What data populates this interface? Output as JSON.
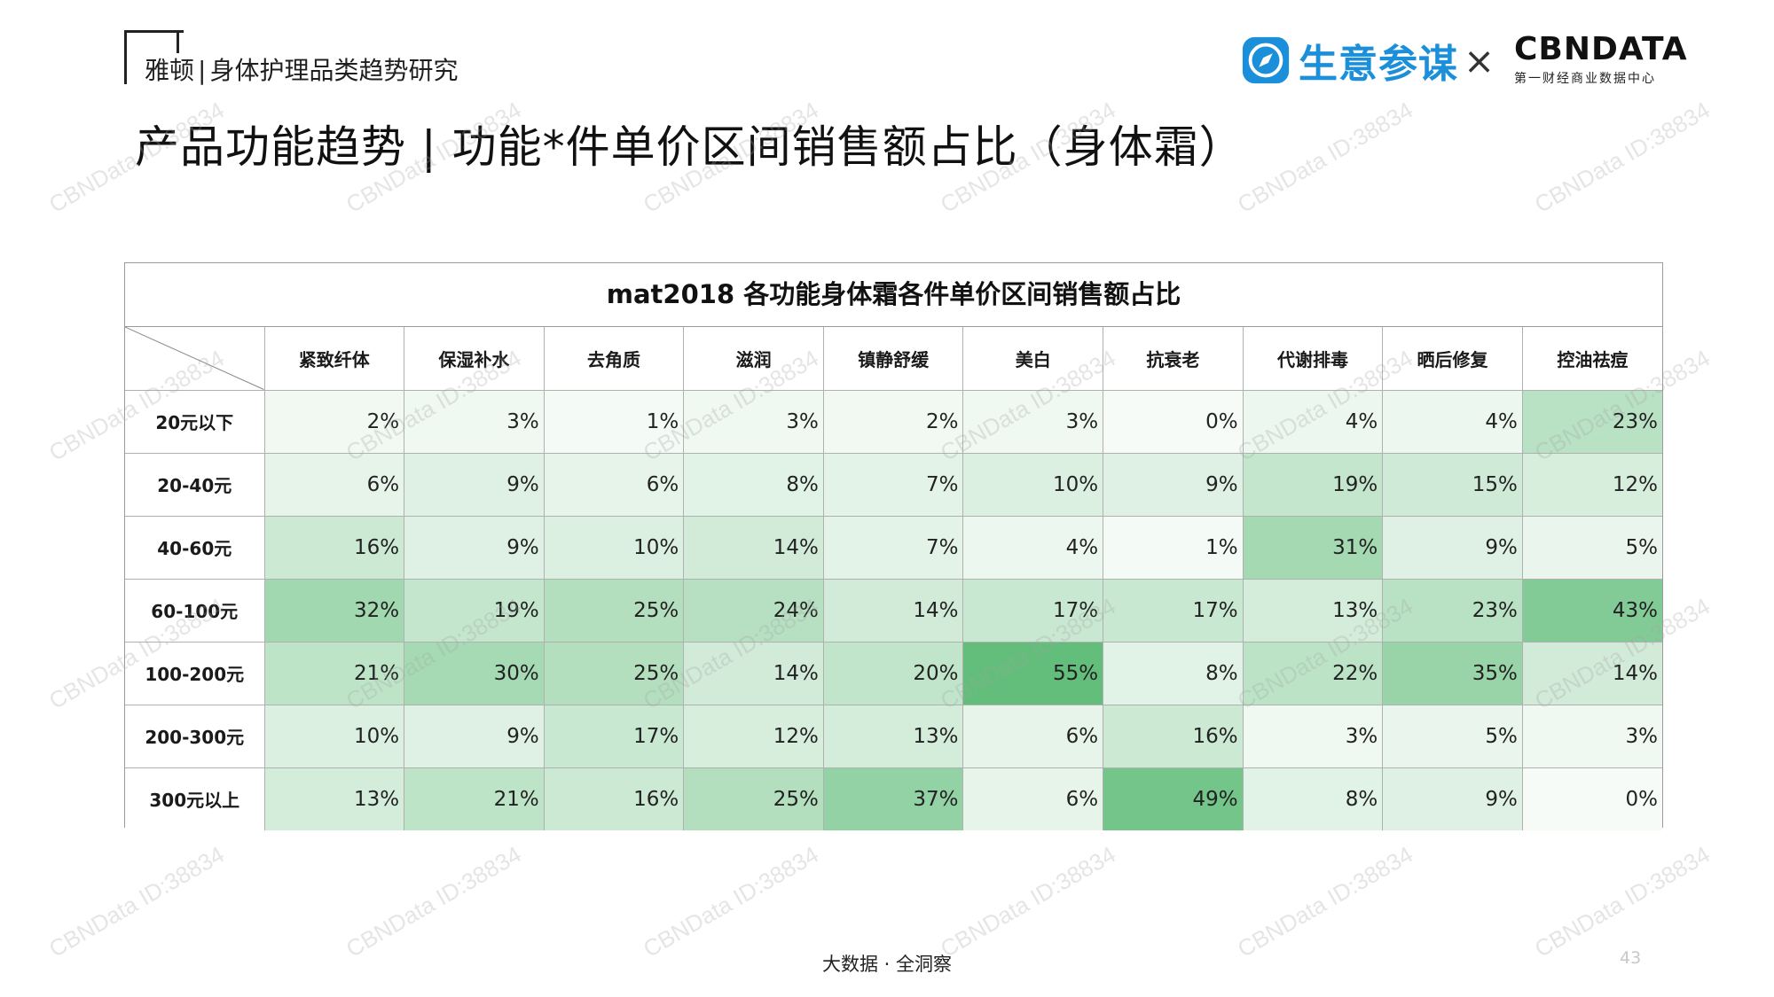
{
  "header": {
    "brand": "雅顿",
    "separator": "|",
    "subtitle": "身体护理品类趋势研究"
  },
  "page_title": "产品功能趋势 | 功能*件单价区间销售额占比（身体霜）",
  "logos": {
    "shengyi_text": "生意参谋",
    "times": "×",
    "cbndata_text": "CBNDATA",
    "cbndata_sub": "第一财经商业数据中心",
    "shengyi_color": "#1b8fd9"
  },
  "watermark_text": "CBNData ID:38834",
  "chart_data": {
    "type": "heatmap",
    "title": "mat2018 各功能身体霜各件单价区间销售额占比",
    "columns": [
      "紧致纤体",
      "保湿补水",
      "去角质",
      "滋润",
      "镇静舒缓",
      "美白",
      "抗衰老",
      "代谢排毒",
      "晒后修复",
      "控油祛痘"
    ],
    "rows": [
      "20元以下",
      "20-40元",
      "40-60元",
      "60-100元",
      "100-200元",
      "200-300元",
      "300元以上"
    ],
    "unit": "%",
    "values": [
      [
        2,
        3,
        1,
        3,
        2,
        3,
        0,
        4,
        4,
        23
      ],
      [
        6,
        9,
        6,
        8,
        7,
        10,
        9,
        19,
        15,
        12
      ],
      [
        16,
        9,
        10,
        14,
        7,
        4,
        1,
        31,
        9,
        5
      ],
      [
        32,
        19,
        25,
        24,
        14,
        17,
        17,
        13,
        23,
        43
      ],
      [
        21,
        30,
        25,
        14,
        20,
        55,
        8,
        22,
        35,
        14
      ],
      [
        10,
        9,
        17,
        12,
        13,
        6,
        16,
        3,
        5,
        3
      ],
      [
        13,
        21,
        16,
        25,
        37,
        6,
        49,
        8,
        9,
        0
      ]
    ],
    "color_scale": {
      "low": "#f7fbf8",
      "high": "#63be7b",
      "min_value": 0,
      "max_value": 55
    }
  },
  "footer": {
    "text": "大数据 · 全洞察",
    "page_number": "43"
  }
}
